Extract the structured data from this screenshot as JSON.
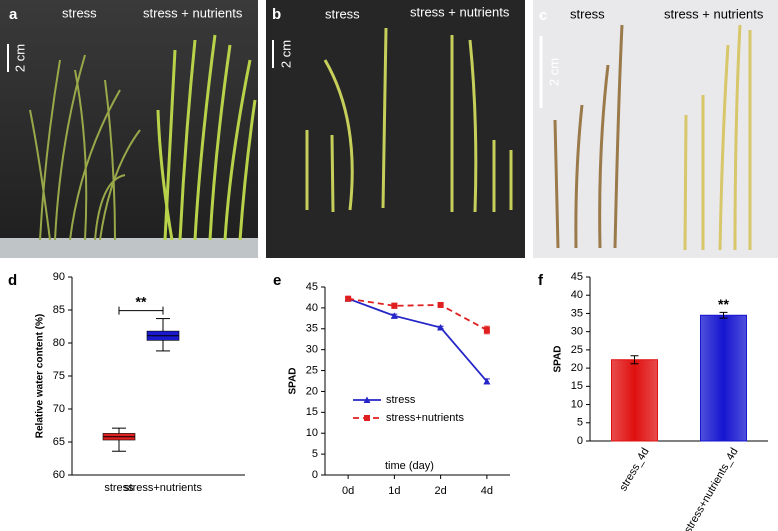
{
  "panels": [
    {
      "label": "a",
      "left": "stress",
      "right": "stress + nutrients",
      "scale": "2 cm"
    },
    {
      "label": "b",
      "left": "stress",
      "right": "stress + nutrients",
      "scale": "2 cm"
    },
    {
      "label": "c",
      "left": "stress",
      "right": "stress + nutrients",
      "scale": "2 cm"
    }
  ],
  "chart_data": [
    {
      "type": "box",
      "panel_label": "d",
      "ylabel": "Relative water content (%)",
      "categories": [
        "stress",
        "stress+nutrients"
      ],
      "boxes": [
        {
          "color": "#e02020",
          "whisker_low": 63.6,
          "q1": 65.3,
          "median": 65.8,
          "q3": 66.3,
          "whisker_high": 67.1
        },
        {
          "color": "#1a1acc",
          "whisker_low": 78.8,
          "q1": 80.4,
          "median": 81.1,
          "q3": 81.8,
          "whisker_high": 83.7
        }
      ],
      "annotation": "**",
      "ylim": [
        60,
        90
      ],
      "yticks": [
        60,
        65,
        70,
        75,
        80,
        85,
        90
      ]
    },
    {
      "type": "line",
      "panel_label": "e",
      "ylabel": "SPAD",
      "xlabel": "time (day)",
      "categories": [
        "0d",
        "1d",
        "2d",
        "4d"
      ],
      "series": [
        {
          "name": "stress",
          "color": "#2525c8",
          "linestyle": "solid",
          "marker": "triangle",
          "values": [
            42.2,
            38.1,
            35.3,
            22.4
          ],
          "errors": [
            0.3,
            0.4,
            0.3,
            0.6
          ]
        },
        {
          "name": "stress+nutrients",
          "color": "#e02020",
          "linestyle": "dashed",
          "marker": "square",
          "values": [
            42.2,
            40.5,
            40.7,
            34.7
          ],
          "errors": [
            0.3,
            0.6,
            0.5,
            0.9
          ]
        }
      ],
      "legend": "lower left",
      "ylim": [
        0,
        45
      ],
      "yticks": [
        0,
        5,
        10,
        15,
        20,
        25,
        30,
        35,
        40,
        45
      ]
    },
    {
      "type": "bar",
      "panel_label": "f",
      "ylabel": "SPAD",
      "categories": [
        "stress_4d",
        "stress+nutrients_4d"
      ],
      "values": [
        22.3,
        34.5
      ],
      "errors": [
        1.1,
        0.8
      ],
      "colors": [
        "#e01010",
        "#1515d0"
      ],
      "annotation": "**",
      "ylim": [
        0,
        45
      ],
      "yticks": [
        0,
        5,
        10,
        15,
        20,
        25,
        30,
        35,
        40,
        45
      ]
    }
  ]
}
